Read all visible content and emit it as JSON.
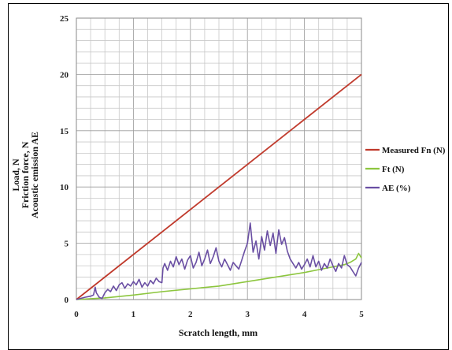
{
  "chart_data": {
    "type": "line",
    "xlabel": "Scratch length, mm",
    "ylabel_lines": [
      "Load, N",
      "Friction force, N",
      "Acoustic emission AE"
    ],
    "xlim": [
      0,
      5
    ],
    "ylim": [
      0,
      25
    ],
    "x_ticks": [
      0,
      1,
      2,
      3,
      4,
      5
    ],
    "y_ticks": [
      0,
      5,
      10,
      15,
      20,
      25
    ],
    "grid": true,
    "minor_grid": true,
    "legend_position": "right",
    "series": [
      {
        "name": "Measured Fn (N)",
        "color": "#c0392b",
        "x": [
          0,
          5
        ],
        "y": [
          0,
          20
        ]
      },
      {
        "name": "Ft (N)",
        "color": "#8dc63f",
        "x": [
          0,
          0.5,
          1.0,
          1.5,
          2.0,
          2.5,
          3.0,
          3.5,
          4.0,
          4.3,
          4.5,
          4.7,
          4.8,
          4.9,
          4.95,
          5.0
        ],
        "y": [
          0,
          0.15,
          0.4,
          0.7,
          0.95,
          1.2,
          1.6,
          2.0,
          2.4,
          2.7,
          2.9,
          3.1,
          3.3,
          3.6,
          4.1,
          3.7
        ]
      },
      {
        "name": "AE (%)",
        "color": "#6a4fa3",
        "x": [
          0,
          0.15,
          0.25,
          0.3,
          0.33,
          0.35,
          0.4,
          0.45,
          0.5,
          0.55,
          0.6,
          0.65,
          0.7,
          0.75,
          0.8,
          0.85,
          0.9,
          0.95,
          1.0,
          1.05,
          1.1,
          1.15,
          1.2,
          1.25,
          1.3,
          1.35,
          1.4,
          1.45,
          1.5,
          1.52,
          1.55,
          1.6,
          1.65,
          1.7,
          1.75,
          1.8,
          1.85,
          1.9,
          1.95,
          2.0,
          2.05,
          2.1,
          2.15,
          2.2,
          2.25,
          2.3,
          2.35,
          2.4,
          2.45,
          2.5,
          2.55,
          2.6,
          2.65,
          2.7,
          2.75,
          2.8,
          2.85,
          2.9,
          2.95,
          3.0,
          3.05,
          3.1,
          3.15,
          3.2,
          3.25,
          3.3,
          3.35,
          3.4,
          3.45,
          3.5,
          3.55,
          3.6,
          3.65,
          3.7,
          3.75,
          3.8,
          3.85,
          3.9,
          3.95,
          4.0,
          4.05,
          4.1,
          4.15,
          4.2,
          4.25,
          4.3,
          4.35,
          4.4,
          4.45,
          4.5,
          4.55,
          4.6,
          4.65,
          4.7,
          4.75,
          4.8,
          4.85,
          4.9,
          4.95,
          5.0
        ],
        "y": [
          0,
          0.2,
          0.3,
          0.4,
          1.1,
          0.6,
          0.2,
          0.1,
          0.6,
          0.9,
          0.7,
          1.2,
          0.8,
          1.3,
          1.5,
          1.0,
          1.4,
          1.2,
          1.6,
          1.3,
          1.8,
          1.1,
          1.5,
          1.2,
          1.7,
          1.4,
          1.9,
          1.6,
          1.5,
          2.8,
          3.2,
          2.6,
          3.4,
          2.9,
          3.8,
          3.1,
          3.6,
          2.7,
          3.5,
          3.9,
          2.8,
          3.3,
          4.2,
          3.0,
          3.6,
          4.4,
          3.2,
          3.8,
          4.6,
          3.4,
          2.9,
          3.6,
          3.1,
          2.6,
          3.3,
          3.0,
          2.7,
          3.5,
          4.3,
          5.0,
          6.8,
          4.2,
          5.2,
          3.6,
          5.6,
          4.4,
          6.1,
          4.8,
          5.9,
          4.1,
          6.2,
          4.9,
          5.5,
          4.3,
          3.6,
          3.2,
          2.8,
          3.3,
          2.7,
          3.1,
          3.6,
          2.9,
          3.9,
          2.9,
          3.4,
          2.6,
          3.2,
          2.8,
          3.6,
          3.0,
          2.5,
          3.2,
          2.8,
          3.9,
          3.1,
          2.9,
          2.5,
          2.1,
          2.8,
          3.3
        ]
      }
    ]
  }
}
